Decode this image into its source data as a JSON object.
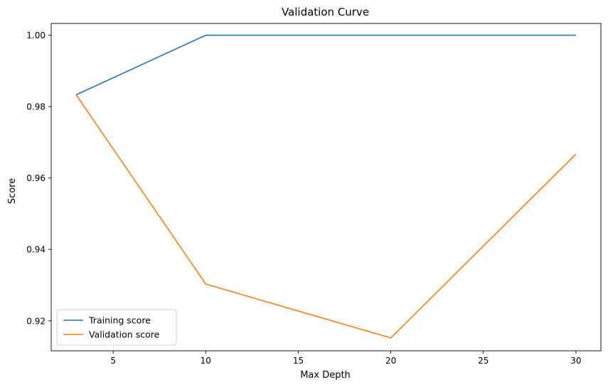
{
  "chart_data": {
    "type": "line",
    "title": "Validation Curve",
    "xlabel": "Max Depth",
    "ylabel": "Score",
    "x": [
      3,
      10,
      20,
      30
    ],
    "xlim": [
      1.65,
      31.35
    ],
    "ylim": [
      0.9116,
      1.0033
    ],
    "xticks": [
      5,
      10,
      15,
      20,
      25,
      30
    ],
    "xtick_labels": [
      "5",
      "10",
      "15",
      "20",
      "25",
      "30"
    ],
    "yticks": [
      0.92,
      0.94,
      0.96,
      0.98,
      1.0
    ],
    "ytick_labels": [
      "0.92",
      "0.94",
      "0.96",
      "0.98",
      "1.00"
    ],
    "grid": false,
    "legend_position": "lower-left",
    "series": [
      {
        "name": "Training score",
        "color": "#1f77b4",
        "values": [
          0.9833,
          1.0,
          1.0,
          1.0
        ]
      },
      {
        "name": "Validation score",
        "color": "#ff7f0e",
        "values": [
          0.9833,
          0.9303,
          0.9152,
          0.9667
        ]
      }
    ]
  }
}
